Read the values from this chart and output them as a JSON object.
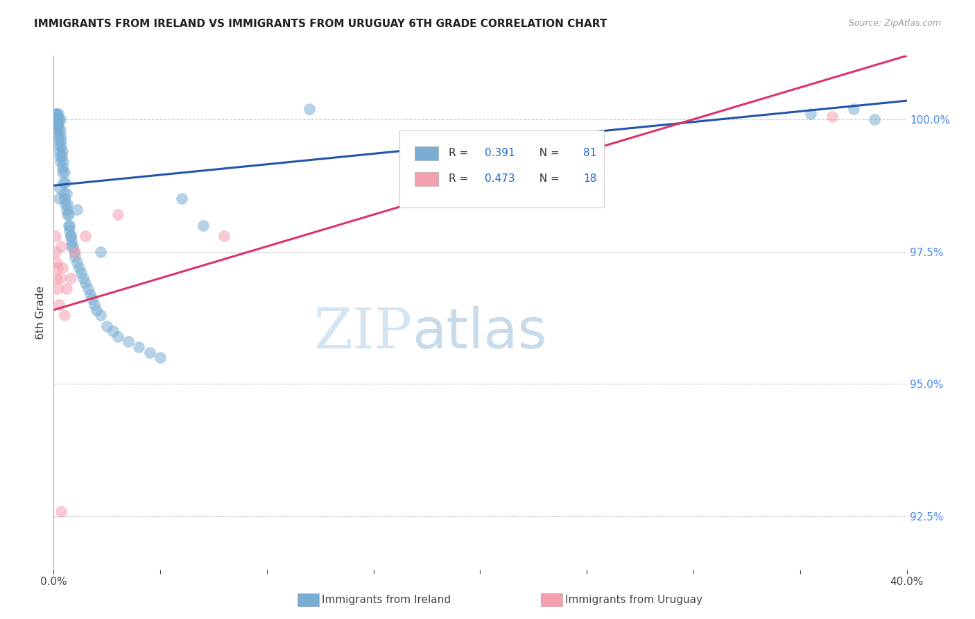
{
  "title": "IMMIGRANTS FROM IRELAND VS IMMIGRANTS FROM URUGUAY 6TH GRADE CORRELATION CHART",
  "source": "Source: ZipAtlas.com",
  "ylabel": "6th Grade",
  "color_ireland": "#7aadd4",
  "color_uruguay": "#f4a0b0",
  "trendline_ireland": "#2255aa",
  "trendline_uruguay": "#dd3366",
  "legend_r_ireland": "0.391",
  "legend_n_ireland": "81",
  "legend_r_uruguay": "0.473",
  "legend_n_uruguay": "18",
  "legend_label_ireland": "Immigrants from Ireland",
  "legend_label_uruguay": "Immigrants from Uruguay",
  "xlim": [
    0,
    40
  ],
  "ylim": [
    91.5,
    101.2
  ],
  "yticks": [
    92.5,
    95.0,
    97.5,
    100.0
  ],
  "ytick_labels": [
    "92.5%",
    "95.0%",
    "97.5%",
    "100.0%"
  ],
  "grid_color": "#cccccc",
  "ireland_trendline_x": [
    0,
    40
  ],
  "ireland_trendline_y": [
    98.75,
    100.35
  ],
  "uruguay_trendline_x": [
    0,
    40
  ],
  "uruguay_trendline_y": [
    96.4,
    101.2
  ],
  "ireland_x": [
    0.08,
    0.09,
    0.1,
    0.11,
    0.12,
    0.13,
    0.14,
    0.15,
    0.16,
    0.17,
    0.18,
    0.19,
    0.2,
    0.21,
    0.22,
    0.23,
    0.24,
    0.25,
    0.26,
    0.27,
    0.28,
    0.3,
    0.32,
    0.35,
    0.38,
    0.4,
    0.42,
    0.45,
    0.48,
    0.5,
    0.55,
    0.6,
    0.65,
    0.7,
    0.75,
    0.8,
    0.85,
    0.9,
    0.95,
    1.0,
    1.1,
    1.2,
    1.3,
    1.4,
    1.5,
    1.6,
    1.7,
    1.8,
    1.9,
    2.0,
    2.2,
    2.5,
    2.8,
    3.0,
    3.5,
    4.0,
    4.5,
    5.0,
    6.0,
    7.0,
    0.3,
    0.35,
    0.4,
    0.45,
    0.5,
    0.55,
    0.6,
    0.65,
    0.7,
    0.75,
    0.8,
    0.85,
    0.25,
    0.28,
    0.32,
    1.1,
    2.2,
    12.0,
    35.5,
    37.5,
    38.5
  ],
  "ireland_y": [
    100.0,
    99.9,
    100.1,
    100.0,
    100.1,
    99.8,
    100.0,
    99.9,
    100.1,
    100.0,
    99.9,
    100.0,
    99.7,
    100.1,
    99.8,
    99.9,
    100.0,
    99.6,
    99.5,
    99.4,
    99.3,
    100.0,
    99.7,
    99.5,
    99.3,
    99.1,
    99.0,
    98.8,
    98.6,
    98.5,
    98.4,
    98.3,
    98.2,
    98.0,
    97.9,
    97.8,
    97.7,
    97.6,
    97.5,
    97.4,
    97.3,
    97.2,
    97.1,
    97.0,
    96.9,
    96.8,
    96.7,
    96.6,
    96.5,
    96.4,
    96.3,
    96.1,
    96.0,
    95.9,
    95.8,
    95.7,
    95.6,
    95.5,
    98.5,
    98.0,
    99.8,
    99.6,
    99.4,
    99.2,
    99.0,
    98.8,
    98.6,
    98.4,
    98.2,
    98.0,
    97.8,
    97.6,
    98.5,
    98.7,
    99.2,
    98.3,
    97.5,
    100.2,
    100.1,
    100.2,
    100.0
  ],
  "uruguay_x": [
    0.08,
    0.1,
    0.12,
    0.15,
    0.18,
    0.2,
    0.25,
    0.3,
    0.35,
    0.4,
    0.5,
    0.6,
    0.8,
    1.0,
    1.5,
    3.0,
    8.0,
    36.5
  ],
  "uruguay_y": [
    97.5,
    97.8,
    97.0,
    97.3,
    96.8,
    97.2,
    96.5,
    97.0,
    97.6,
    97.2,
    96.3,
    96.8,
    97.0,
    97.5,
    97.8,
    98.2,
    97.8,
    100.05
  ],
  "uruguay_outlier_x": [
    0.35
  ],
  "uruguay_outlier_y": [
    92.6
  ]
}
